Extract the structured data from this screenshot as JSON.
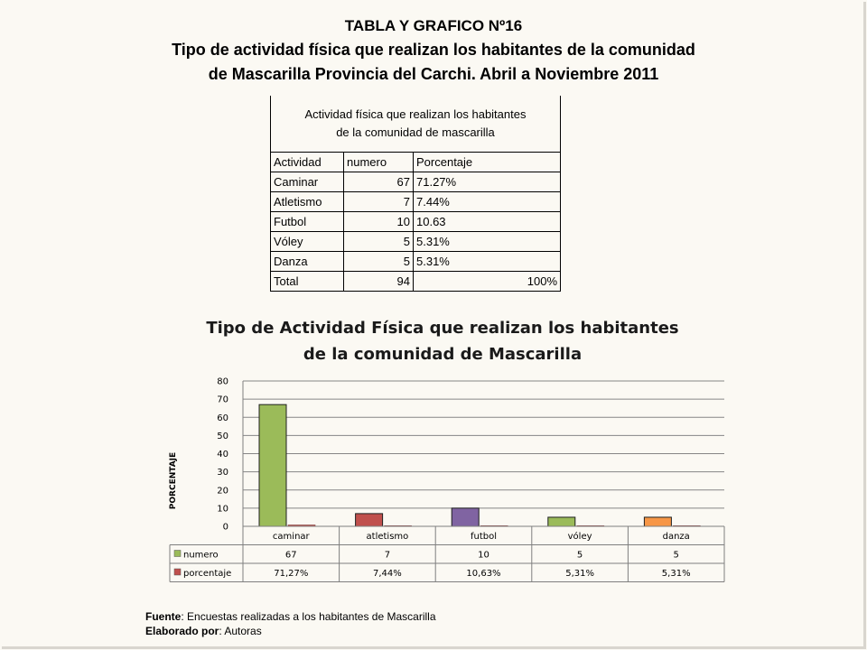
{
  "header": {
    "line1": "TABLA Y GRAFICO Nº16",
    "line2": "Tipo de actividad física que realizan los habitantes de la comunidad",
    "line3": "de Mascarilla Provincia del Carchi. Abril a Noviembre 2011"
  },
  "table": {
    "caption_line1": "Actividad física que realizan los habitantes",
    "caption_line2": "de la comunidad de mascarilla",
    "headers": [
      "Actividad",
      "numero",
      "Porcentaje"
    ],
    "rows": [
      {
        "actividad": "Caminar",
        "numero": "67",
        "porcentaje": "71.27%"
      },
      {
        "actividad": "Atletismo",
        "numero": "7",
        "porcentaje": "7.44%"
      },
      {
        "actividad": "Futbol",
        "numero": "10",
        "porcentaje": "10.63"
      },
      {
        "actividad": "Vóley",
        "numero": "5",
        "porcentaje": "5.31%"
      },
      {
        "actividad": "Danza",
        "numero": "5",
        "porcentaje": "5.31%"
      }
    ],
    "total": {
      "label": "Total",
      "numero": "94",
      "porcentaje": "100%"
    }
  },
  "chart_data": {
    "type": "bar",
    "title_line1": "Tipo de Actividad Física que realizan los habitantes",
    "title_line2": "de la comunidad de Mascarilla",
    "ylabel": "PORCENTAJE",
    "ylim": [
      0,
      80
    ],
    "yticks": [
      0,
      10,
      20,
      30,
      40,
      50,
      60,
      70,
      80
    ],
    "grid": true,
    "legend": "data table below chart",
    "categories": [
      "caminar",
      "atletismo",
      "futbol",
      "vóley",
      "danza"
    ],
    "series": [
      {
        "name": "numero",
        "values": [
          67,
          7,
          10,
          5,
          5
        ],
        "labels": [
          "67",
          "7",
          "10",
          "5",
          "5"
        ]
      },
      {
        "name": "porcentaje",
        "values": [
          0.7127,
          0.0744,
          0.1063,
          0.0531,
          0.0531
        ],
        "labels": [
          "71,27%",
          "7,44%",
          "10,63%",
          "5,31%",
          "5,31%"
        ]
      }
    ],
    "bar_colors": {
      "numero": [
        "#9bbb59",
        "#c0504d",
        "#8064a2",
        "#9bbb59",
        "#f79646"
      ],
      "porcentaje": "#c0504d"
    },
    "legend_colors": {
      "numero": "#9bbb59",
      "porcentaje": "#c0504d"
    }
  },
  "footer": {
    "source_label": "Fuente",
    "source_text": ": Encuestas realizadas  a los habitantes de Mascarilla",
    "author_label": "Elaborado por",
    "author_text": ": Autoras"
  }
}
